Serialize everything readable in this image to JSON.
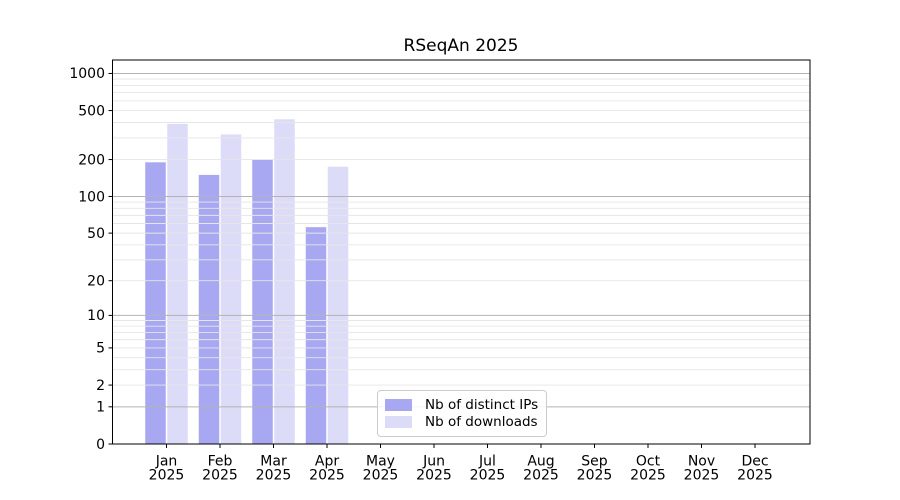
{
  "chart_data": {
    "type": "bar",
    "title": "RSeqAn 2025",
    "year_label": "2025",
    "categories": [
      "Jan",
      "Feb",
      "Mar",
      "Apr",
      "May",
      "Jun",
      "Jul",
      "Aug",
      "Sep",
      "Oct",
      "Nov",
      "Dec"
    ],
    "y_scale": "log1p",
    "y_ticks": [
      1000,
      500,
      200,
      100,
      50,
      20,
      10,
      5,
      2,
      1,
      0
    ],
    "y_major_gridlines": [
      1,
      10,
      100,
      1000
    ],
    "y_minor_gridlines": [
      2,
      3,
      4,
      5,
      6,
      7,
      8,
      9,
      20,
      30,
      40,
      50,
      60,
      70,
      80,
      90,
      200,
      300,
      400,
      500,
      600,
      700,
      800,
      900
    ],
    "series": [
      {
        "name": "Nb of distinct IPs",
        "color": "#a8a8f2",
        "values": [
          190,
          150,
          200,
          56,
          0,
          0,
          0,
          0,
          0,
          0,
          0,
          0
        ]
      },
      {
        "name": "Nb of downloads",
        "color": "#dcdcf9",
        "values": [
          390,
          320,
          425,
          175,
          0,
          0,
          0,
          0,
          0,
          0,
          0,
          0
        ]
      }
    ],
    "legend_position": "lower center",
    "colors": {
      "axis": "#000000",
      "grid_major": "#b3b3b3",
      "grid_minor": "#e6e6e6",
      "background": "#ffffff"
    }
  }
}
